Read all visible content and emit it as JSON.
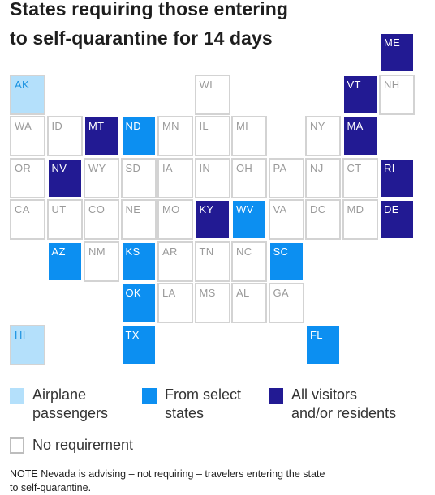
{
  "title_lines": [
    "States requiring those entering",
    "to self-quarantine for 14 days"
  ],
  "colors": {
    "airplane": "#b4e0fb",
    "select": "#0c8ff1",
    "all": "#221a93",
    "none": "#ffffff"
  },
  "states": [
    {
      "abbr": "ME",
      "cat": "all"
    },
    {
      "abbr": "AK",
      "cat": "air"
    },
    {
      "abbr": "WI",
      "cat": "none"
    },
    {
      "abbr": "VT",
      "cat": "all"
    },
    {
      "abbr": "NH",
      "cat": "none"
    },
    {
      "abbr": "WA",
      "cat": "none"
    },
    {
      "abbr": "ID",
      "cat": "none"
    },
    {
      "abbr": "MT",
      "cat": "all"
    },
    {
      "abbr": "ND",
      "cat": "sel"
    },
    {
      "abbr": "MN",
      "cat": "none"
    },
    {
      "abbr": "IL",
      "cat": "none"
    },
    {
      "abbr": "MI",
      "cat": "none"
    },
    {
      "abbr": "NY",
      "cat": "none"
    },
    {
      "abbr": "MA",
      "cat": "all"
    },
    {
      "abbr": "OR",
      "cat": "none"
    },
    {
      "abbr": "NV",
      "cat": "all"
    },
    {
      "abbr": "WY",
      "cat": "none"
    },
    {
      "abbr": "SD",
      "cat": "none"
    },
    {
      "abbr": "IA",
      "cat": "none"
    },
    {
      "abbr": "IN",
      "cat": "none"
    },
    {
      "abbr": "OH",
      "cat": "none"
    },
    {
      "abbr": "PA",
      "cat": "none"
    },
    {
      "abbr": "NJ",
      "cat": "none"
    },
    {
      "abbr": "CT",
      "cat": "none"
    },
    {
      "abbr": "RI",
      "cat": "all"
    },
    {
      "abbr": "CA",
      "cat": "none"
    },
    {
      "abbr": "UT",
      "cat": "none"
    },
    {
      "abbr": "CO",
      "cat": "none"
    },
    {
      "abbr": "NE",
      "cat": "none"
    },
    {
      "abbr": "MO",
      "cat": "none"
    },
    {
      "abbr": "KY",
      "cat": "all"
    },
    {
      "abbr": "WV",
      "cat": "sel"
    },
    {
      "abbr": "VA",
      "cat": "none"
    },
    {
      "abbr": "DC",
      "cat": "none"
    },
    {
      "abbr": "MD",
      "cat": "none"
    },
    {
      "abbr": "DE",
      "cat": "all"
    },
    {
      "abbr": "AZ",
      "cat": "sel"
    },
    {
      "abbr": "NM",
      "cat": "none"
    },
    {
      "abbr": "KS",
      "cat": "sel"
    },
    {
      "abbr": "AR",
      "cat": "none"
    },
    {
      "abbr": "TN",
      "cat": "none"
    },
    {
      "abbr": "NC",
      "cat": "none"
    },
    {
      "abbr": "SC",
      "cat": "sel"
    },
    {
      "abbr": "OK",
      "cat": "sel"
    },
    {
      "abbr": "LA",
      "cat": "none"
    },
    {
      "abbr": "MS",
      "cat": "none"
    },
    {
      "abbr": "AL",
      "cat": "none"
    },
    {
      "abbr": "GA",
      "cat": "none"
    },
    {
      "abbr": "HI",
      "cat": "air"
    },
    {
      "abbr": "TX",
      "cat": "sel"
    },
    {
      "abbr": "FL",
      "cat": "sel"
    }
  ],
  "legend": {
    "airplane": [
      "Airplane",
      "passengers"
    ],
    "select": [
      "From select",
      "states"
    ],
    "all": [
      "All visitors",
      "and/or residents"
    ],
    "none": "No requirement"
  },
  "note_lines": [
    "NOTE Nevada is advising – not requiring – travelers entering the state",
    "to self-quarantine."
  ]
}
